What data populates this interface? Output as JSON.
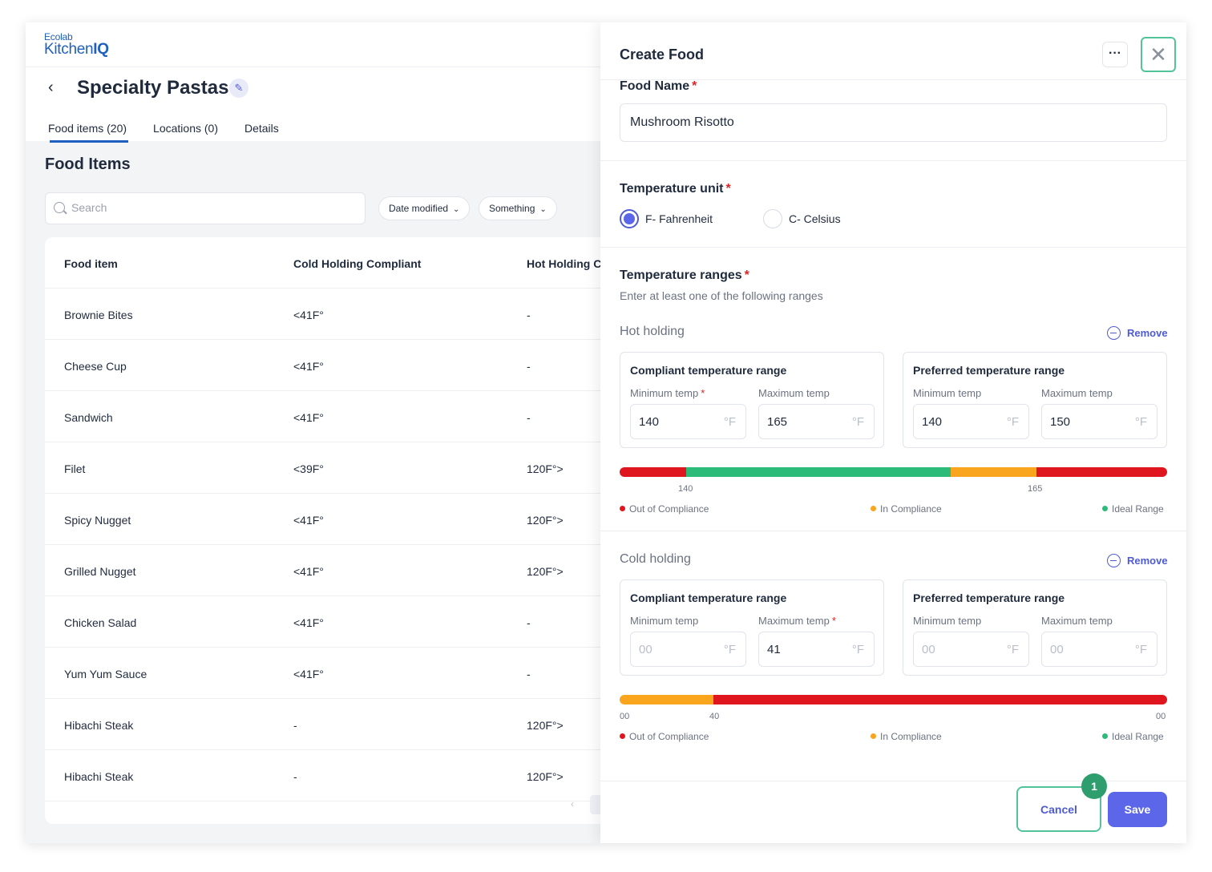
{
  "colors": {
    "out": "#e0161f",
    "in": "#faa51e",
    "ideal": "#2dbb7a",
    "accent": "#5b67e8",
    "focus": "#53c49a"
  },
  "logo": {
    "line1": "Ecolab",
    "line2a": "Kitchen",
    "line2b": "IQ"
  },
  "header": {
    "back_icon": "chevron-left-icon",
    "title": "Specialty Pastas",
    "edit_icon": "pencil-icon"
  },
  "tabs": [
    {
      "label": "Food items (20)"
    },
    {
      "label": "Locations (0)"
    },
    {
      "label": "Details"
    }
  ],
  "list": {
    "title": "Food Items",
    "search_placeholder": "Search",
    "filters": [
      {
        "label": "Date modified"
      },
      {
        "label": "Something"
      }
    ],
    "columns": [
      "Food item",
      "Cold Holding Compliant",
      "Hot Holding Co"
    ],
    "rows": [
      {
        "name": "Brownie Bites",
        "cold": "<41F°",
        "hot": "-"
      },
      {
        "name": "Cheese Cup",
        "cold": "<41F°",
        "hot": "-"
      },
      {
        "name": "Sandwich",
        "cold": "<41F°",
        "hot": "-"
      },
      {
        "name": "Filet",
        "cold": "<39F°",
        "hot": "120F°>"
      },
      {
        "name": "Spicy Nugget",
        "cold": "<41F°",
        "hot": "120F°>"
      },
      {
        "name": "Grilled Nugget",
        "cold": "<41F°",
        "hot": "120F°>"
      },
      {
        "name": "Chicken Salad",
        "cold": "<41F°",
        "hot": "-"
      },
      {
        "name": "Yum Yum Sauce",
        "cold": "<41F°",
        "hot": "-"
      },
      {
        "name": "Hibachi Steak",
        "cold": "-",
        "hot": "120F°>"
      },
      {
        "name": "Hibachi Steak",
        "cold": "-",
        "hot": "120F°>"
      }
    ],
    "pager_prev": "‹"
  },
  "modal": {
    "title": "Create Food",
    "more_icon": "more-horizontal-icon",
    "close_icon": "close-icon",
    "food_name_label": "Food Name",
    "food_name_value": "Mushroom Risotto",
    "required_mark": "*",
    "temp_unit_label": "Temperature unit",
    "unit_options": [
      {
        "label": "F- Fahrenheit",
        "selected": true
      },
      {
        "label": "C- Celsius",
        "selected": false
      }
    ],
    "ranges_label": "Temperature ranges",
    "ranges_sub": "Enter at least one of the following ranges",
    "remove_label": "Remove",
    "compliant_title": "Compliant temperature range",
    "preferred_title": "Preferred temperature range",
    "min_label": "Minimum temp",
    "max_label": "Maximum temp",
    "unit": "°F",
    "legend": {
      "out": "Out of Compliance",
      "in": "In Compliance",
      "ideal": "Ideal Range"
    },
    "hot": {
      "title": "Hot holding",
      "compliant_min": "140",
      "compliant_max": "165",
      "preferred_min": "140",
      "preferred_max": "150",
      "ticks": [
        "140",
        "165"
      ],
      "segments": [
        {
          "color": "out",
          "fraction": 0.122
        },
        {
          "color": "ideal",
          "fraction": 0.483
        },
        {
          "color": "in",
          "fraction": 0.157
        },
        {
          "color": "out",
          "fraction": 0.238
        }
      ]
    },
    "cold": {
      "title": "Cold holding",
      "compliant_min_placeholder": "00",
      "compliant_max": "41",
      "preferred_min_placeholder": "00",
      "preferred_max_placeholder": "00",
      "ticks": [
        "00",
        "40",
        "00"
      ],
      "segments": [
        {
          "color": "in",
          "fraction": 0.172
        },
        {
          "color": "out",
          "fraction": 0.828
        }
      ]
    },
    "cancel_label": "Cancel",
    "save_label": "Save",
    "step_badge": "1"
  }
}
